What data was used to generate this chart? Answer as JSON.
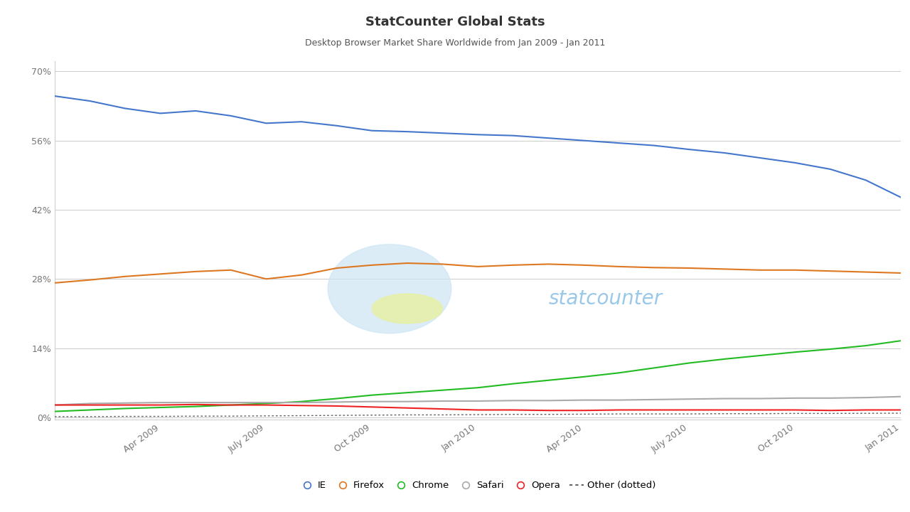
{
  "title": "StatCounter Global Stats",
  "subtitle": "Desktop Browser Market Share Worldwide from Jan 2009 - Jan 2011",
  "title_fontsize": 13,
  "subtitle_fontsize": 9,
  "background_color": "#ffffff",
  "plot_background": "#ffffff",
  "yticks": [
    0,
    14,
    28,
    42,
    56,
    70
  ],
  "ytick_labels": [
    "0%",
    "14%",
    "28%",
    "42%",
    "56%",
    "70%"
  ],
  "xtick_labels": [
    "Apr 2009",
    "July 2009",
    "Oct 2009",
    "Jan 2010",
    "Apr 2010",
    "July 2010",
    "Oct 2010",
    "Jan 2011"
  ],
  "n_points": 25,
  "IE": [
    65.0,
    64.0,
    62.5,
    61.5,
    62.0,
    61.0,
    59.5,
    59.8,
    59.0,
    58.0,
    57.8,
    57.5,
    57.2,
    57.0,
    56.5,
    56.0,
    55.5,
    55.0,
    54.2,
    53.5,
    52.5,
    51.5,
    50.2,
    48.0,
    44.5
  ],
  "Firefox": [
    27.2,
    27.8,
    28.5,
    29.0,
    29.5,
    29.8,
    28.0,
    28.8,
    30.2,
    30.8,
    31.2,
    31.0,
    30.5,
    30.8,
    31.0,
    30.8,
    30.5,
    30.3,
    30.2,
    30.0,
    29.8,
    29.8,
    29.6,
    29.4,
    29.2
  ],
  "Chrome": [
    1.2,
    1.5,
    1.8,
    2.0,
    2.2,
    2.5,
    2.8,
    3.2,
    3.8,
    4.5,
    5.0,
    5.5,
    6.0,
    6.8,
    7.5,
    8.2,
    9.0,
    10.0,
    11.0,
    11.8,
    12.5,
    13.2,
    13.8,
    14.5,
    15.5
  ],
  "Safari": [
    2.5,
    2.8,
    2.9,
    3.0,
    3.0,
    3.0,
    3.0,
    3.0,
    3.1,
    3.2,
    3.2,
    3.3,
    3.3,
    3.4,
    3.4,
    3.5,
    3.5,
    3.6,
    3.7,
    3.8,
    3.8,
    3.9,
    3.9,
    4.0,
    4.2
  ],
  "Opera": [
    2.5,
    2.5,
    2.5,
    2.5,
    2.6,
    2.5,
    2.5,
    2.4,
    2.3,
    2.1,
    1.9,
    1.7,
    1.5,
    1.5,
    1.4,
    1.4,
    1.5,
    1.5,
    1.5,
    1.5,
    1.5,
    1.5,
    1.4,
    1.5,
    1.5
  ],
  "Other": [
    0.15,
    0.15,
    0.2,
    0.2,
    0.25,
    0.25,
    0.3,
    0.35,
    0.4,
    0.45,
    0.5,
    0.5,
    0.55,
    0.6,
    0.6,
    0.65,
    0.7,
    0.7,
    0.7,
    0.75,
    0.75,
    0.8,
    0.8,
    0.82,
    0.85
  ],
  "colors": {
    "IE": "#4477cc",
    "Firefox": "#dd7722",
    "Chrome": "#22bb22",
    "Safari": "#aaaaaa",
    "Opera": "#ee2222",
    "Other": "#666666"
  },
  "watermark_text": "statcounter",
  "watermark_text_color": "#99c8e8",
  "watermark_oval_color": "#cce5f5",
  "watermark_yellow_color": "#e8f0a0",
  "grid_color": "#cccccc",
  "axis_color": "#999999",
  "tick_color": "#777777"
}
